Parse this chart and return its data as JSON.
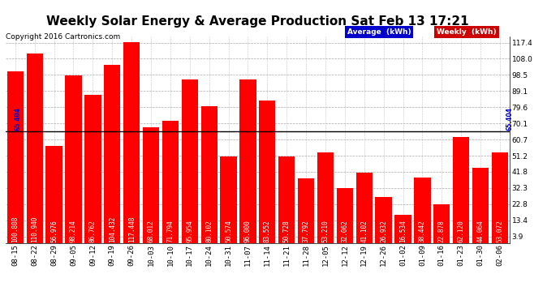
{
  "title": "Weekly Solar Energy & Average Production Sat Feb 13 17:21",
  "copyright": "Copyright 2016 Cartronics.com",
  "categories": [
    "08-15",
    "08-22",
    "08-29",
    "09-05",
    "09-12",
    "09-19",
    "09-26",
    "10-03",
    "10-10",
    "10-17",
    "10-24",
    "10-31",
    "11-07",
    "11-14",
    "11-21",
    "11-28",
    "12-05",
    "12-12",
    "12-19",
    "12-26",
    "01-02",
    "01-09",
    "01-16",
    "01-23",
    "01-30",
    "02-06"
  ],
  "values": [
    100.808,
    110.94,
    56.976,
    98.214,
    86.762,
    104.432,
    117.448,
    68.012,
    71.794,
    95.954,
    80.102,
    50.574,
    96.0,
    83.552,
    50.728,
    37.792,
    53.21,
    32.062,
    41.102,
    26.932,
    16.534,
    38.442,
    22.878,
    62.12,
    44.064,
    53.072
  ],
  "average_value": 65.404,
  "average_label": "65.404",
  "bar_color": "#ff0000",
  "average_line_color": "#000000",
  "background_color": "#ffffff",
  "plot_bg_color": "#ffffff",
  "yticks": [
    3.9,
    13.4,
    22.8,
    32.3,
    41.8,
    51.2,
    60.7,
    70.1,
    79.6,
    89.1,
    98.5,
    108.0,
    117.4
  ],
  "ymin": 0,
  "ymax": 121,
  "grid_color": "#888888",
  "title_fontsize": 11,
  "tick_fontsize": 6.5,
  "bar_label_fontsize": 5.5,
  "copyright_fontsize": 6.5,
  "legend_avg_color": "#0000cc",
  "legend_weekly_color": "#cc0000",
  "legend_avg_text": "Average  (kWh)",
  "legend_weekly_text": "Weekly  (kWh)"
}
